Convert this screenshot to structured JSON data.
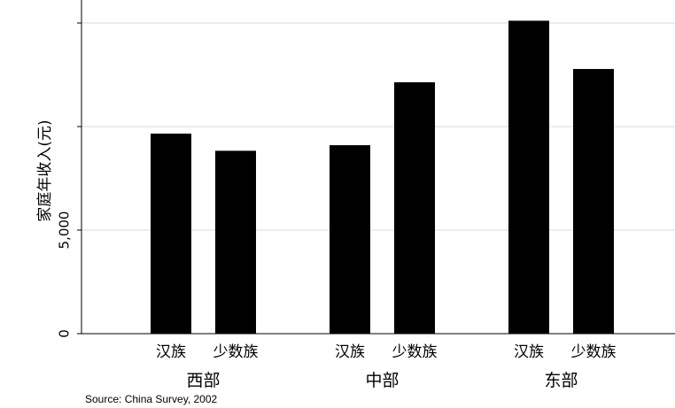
{
  "chart_data": {
    "type": "bar",
    "ylabel": "家庭年收入(元)",
    "ylim": [
      0,
      15000
    ],
    "yticks": [
      0,
      5000,
      10000,
      15000
    ],
    "ytick_labels": [
      "0",
      "5,000",
      "",
      ""
    ],
    "grid": true,
    "groups": [
      {
        "label": "西部",
        "bars": [
          {
            "category": "汉族",
            "value": 9660
          },
          {
            "category": "少数族",
            "value": 8830
          }
        ]
      },
      {
        "label": "中部",
        "bars": [
          {
            "category": "汉族",
            "value": 9100
          },
          {
            "category": "少数族",
            "value": 12140
          }
        ]
      },
      {
        "label": "东部",
        "bars": [
          {
            "category": "汉族",
            "value": 15110
          },
          {
            "category": "少数族",
            "value": 12780
          }
        ]
      }
    ],
    "bar_color": "#000000",
    "gridline_color": "#d9d9d9"
  },
  "source": "Source: China Survey, 2002"
}
